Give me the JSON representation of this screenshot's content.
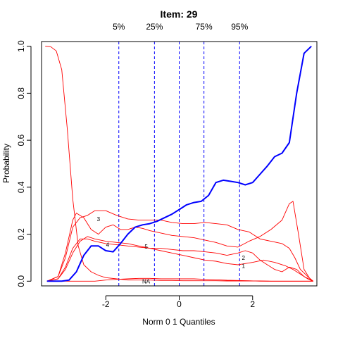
{
  "chart_data": {
    "type": "line",
    "title": "Item:  29",
    "xlabel": "Norm 0 1 Quantiles",
    "ylabel": "Probability",
    "xlim": [
      -3.75,
      3.75
    ],
    "ylim": [
      -0.02,
      1.02
    ],
    "x_ticks": [
      -2,
      0,
      2
    ],
    "x_tick_labels": [
      "-2",
      "0",
      "2"
    ],
    "y_ticks": [
      0.0,
      0.2,
      0.4,
      0.6,
      0.8,
      1.0
    ],
    "y_tick_labels": [
      "0.0",
      "0.2",
      "0.4",
      "0.6",
      "0.8",
      "1.0"
    ],
    "grid": false,
    "quantile_lines": [
      {
        "label": "5%",
        "x": -1.645
      },
      {
        "label": "25%",
        "x": -0.674
      },
      {
        "label": "",
        "x": 0
      },
      {
        "label": "75%",
        "x": 0.674
      },
      {
        "label": "95%",
        "x": 1.645
      }
    ],
    "colors": {
      "correct": "#0000ff",
      "distractor": "#ff0000",
      "quantile": "#0000ff"
    },
    "series": [
      {
        "label": "",
        "role": "correct",
        "x": [
          -3.6,
          -3.2,
          -3.0,
          -2.8,
          -2.6,
          -2.4,
          -2.2,
          -2.0,
          -1.8,
          -1.6,
          -1.4,
          -1.2,
          -1.0,
          -0.8,
          -0.6,
          -0.4,
          -0.2,
          0.0,
          0.2,
          0.4,
          0.6,
          0.8,
          1.0,
          1.2,
          1.4,
          1.6,
          1.8,
          2.0,
          2.2,
          2.4,
          2.6,
          2.8,
          3.0,
          3.2,
          3.4,
          3.6
        ],
        "y": [
          0.0,
          0.0,
          0.005,
          0.04,
          0.11,
          0.15,
          0.15,
          0.13,
          0.125,
          0.16,
          0.2,
          0.23,
          0.24,
          0.245,
          0.255,
          0.27,
          0.285,
          0.305,
          0.325,
          0.335,
          0.34,
          0.365,
          0.42,
          0.43,
          0.425,
          0.42,
          0.41,
          0.42,
          0.455,
          0.49,
          0.53,
          0.545,
          0.59,
          0.8,
          0.97,
          1.0
        ]
      },
      {
        "label": "1",
        "role": "distractor",
        "x": [
          -3.6,
          -3.3,
          -3.1,
          -2.9,
          -2.7,
          -2.5,
          -2.3,
          -2.0,
          -1.7,
          -1.4,
          -1.1,
          -0.8,
          -0.5,
          -0.2,
          0.1,
          0.4,
          0.7,
          1.0,
          1.3,
          1.6,
          1.8,
          2.0,
          2.3,
          2.6,
          2.9,
          3.1,
          3.3,
          3.5,
          3.65
        ],
        "y": [
          0.0,
          0.01,
          0.05,
          0.12,
          0.17,
          0.19,
          0.18,
          0.17,
          0.165,
          0.16,
          0.15,
          0.14,
          0.13,
          0.12,
          0.11,
          0.1,
          0.09,
          0.085,
          0.075,
          0.07,
          0.075,
          0.08,
          0.09,
          0.08,
          0.065,
          0.05,
          0.03,
          0.01,
          0.0
        ]
      },
      {
        "label": "2",
        "role": "distractor",
        "x": [
          -3.6,
          -3.3,
          -3.1,
          -2.9,
          -2.7,
          -2.5,
          -2.3,
          -2.0,
          -1.7,
          -1.4,
          -1.1,
          -0.8,
          -0.5,
          -0.2,
          0.1,
          0.4,
          0.7,
          1.0,
          1.3,
          1.6,
          1.8,
          2.0,
          2.2,
          2.4,
          2.6,
          2.8,
          3.0,
          3.2,
          3.4,
          3.65
        ],
        "y": [
          0.0,
          0.01,
          0.06,
          0.14,
          0.18,
          0.18,
          0.17,
          0.16,
          0.155,
          0.15,
          0.145,
          0.14,
          0.14,
          0.135,
          0.13,
          0.13,
          0.125,
          0.12,
          0.11,
          0.12,
          0.13,
          0.12,
          0.09,
          0.07,
          0.05,
          0.04,
          0.06,
          0.05,
          0.02,
          0.0
        ]
      },
      {
        "label": "3",
        "role": "distractor",
        "x": [
          -3.6,
          -3.3,
          -3.1,
          -2.9,
          -2.7,
          -2.5,
          -2.3,
          -2.0,
          -1.7,
          -1.4,
          -1.1,
          -0.8,
          -0.5,
          -0.2,
          0.1,
          0.4,
          0.7,
          1.0,
          1.3,
          1.6,
          1.9,
          2.2,
          2.5,
          2.8,
          3.0,
          3.15,
          3.3,
          3.5,
          3.65
        ],
        "y": [
          0.0,
          0.02,
          0.1,
          0.23,
          0.27,
          0.28,
          0.3,
          0.3,
          0.28,
          0.265,
          0.26,
          0.26,
          0.26,
          0.25,
          0.245,
          0.245,
          0.25,
          0.245,
          0.24,
          0.22,
          0.21,
          0.18,
          0.17,
          0.16,
          0.14,
          0.1,
          0.05,
          0.02,
          0.0
        ]
      },
      {
        "label": "4",
        "role": "distractor",
        "x": [
          -3.6,
          -3.3,
          -3.1,
          -2.9,
          -2.8,
          -2.6,
          -2.4,
          -2.2,
          -2.0,
          -1.8,
          -1.6,
          -1.4,
          -1.2,
          -1.0,
          -0.8,
          -0.5,
          -0.2,
          0.1,
          0.4,
          0.7,
          1.0,
          1.3,
          1.6,
          1.9,
          2.2,
          2.5,
          2.8,
          3.0,
          3.1,
          3.25,
          3.4,
          3.6
        ],
        "y": [
          0.0,
          0.02,
          0.12,
          0.26,
          0.29,
          0.27,
          0.22,
          0.2,
          0.23,
          0.24,
          0.22,
          0.22,
          0.23,
          0.225,
          0.215,
          0.205,
          0.195,
          0.19,
          0.185,
          0.175,
          0.165,
          0.15,
          0.145,
          0.17,
          0.19,
          0.22,
          0.26,
          0.33,
          0.34,
          0.2,
          0.05,
          0.0
        ]
      },
      {
        "label": "5",
        "role": "distractor",
        "x": [
          -3.65,
          -3.5,
          -3.35,
          -3.2,
          -3.05,
          -2.9,
          -2.75,
          -2.6,
          -2.4,
          -2.2,
          -2.0,
          -1.7,
          -1.4,
          -1.1,
          -0.8,
          -0.5,
          -0.2,
          0.1,
          0.4,
          0.7,
          1.0,
          1.3,
          1.6,
          1.9,
          2.2,
          2.5,
          2.8,
          3.1,
          3.4,
          3.65
        ],
        "y": [
          1.0,
          0.998,
          0.98,
          0.9,
          0.65,
          0.35,
          0.15,
          0.07,
          0.04,
          0.025,
          0.015,
          0.01,
          0.005,
          0.005,
          0.005,
          0.003,
          0.003,
          0.002,
          0.002,
          0.002,
          0.002,
          0.001,
          0.001,
          0.001,
          0.001,
          0.0,
          0.0,
          0.0,
          0.0,
          0.0
        ]
      },
      {
        "label": "NA",
        "role": "distractor",
        "x": [
          -3.6,
          -3.2,
          -2.9,
          -2.6,
          -2.3,
          -2.0,
          -1.7,
          -1.4,
          -1.1,
          -0.8,
          -0.5,
          -0.2,
          0.1,
          0.4,
          0.7,
          1.0,
          1.3,
          1.6,
          1.9,
          2.2,
          2.5,
          2.8,
          3.1,
          3.4,
          3.65
        ],
        "y": [
          0.0,
          0.0,
          0.0,
          0.0,
          0.0,
          0.005,
          0.008,
          0.01,
          0.012,
          0.012,
          0.01,
          0.01,
          0.01,
          0.01,
          0.008,
          0.006,
          0.004,
          0.003,
          0.002,
          0.0,
          0.0,
          0.0,
          0.0,
          0.0,
          0.0
        ]
      }
    ],
    "curve_labels": [
      {
        "text": "3",
        "x": -2.2,
        "y": 0.265
      },
      {
        "text": "4",
        "x": -1.95,
        "y": 0.155
      },
      {
        "text": "5",
        "x": -0.9,
        "y": 0.148
      },
      {
        "text": "NA",
        "x": -0.9,
        "y": 0.0
      },
      {
        "text": "2",
        "x": 1.75,
        "y": 0.1
      },
      {
        "text": "1",
        "x": 1.75,
        "y": 0.065
      }
    ]
  }
}
